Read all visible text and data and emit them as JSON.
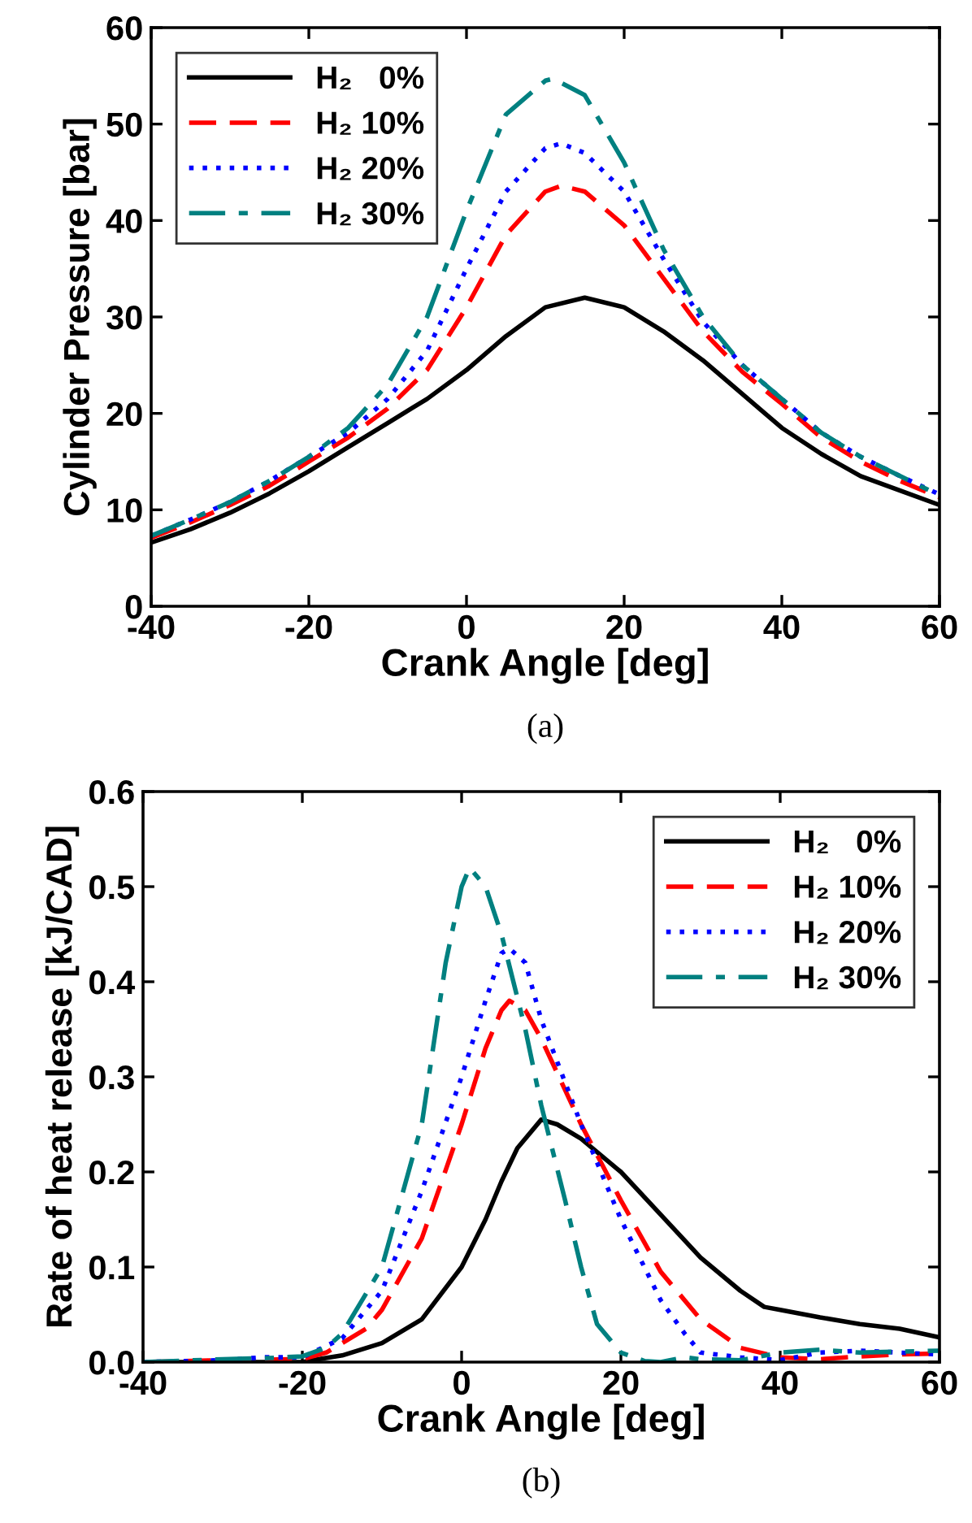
{
  "chart_data": [
    {
      "type": "line",
      "xlabel": "Crank Angle [deg]",
      "ylabel": "Cylinder Pressure [bar]",
      "annotations": [
        "(a)"
      ],
      "xlim": [
        -40,
        60
      ],
      "xticks": [
        -40,
        -20,
        0,
        20,
        40,
        60
      ],
      "ylim": [
        0,
        60
      ],
      "yticks": [
        0,
        10,
        20,
        30,
        40,
        50,
        60
      ],
      "grid": false,
      "legend": "top left",
      "series": [
        {
          "name": "H₂   0%",
          "color": "#000000",
          "line_style": "solid",
          "x": [
            -40,
            -35,
            -30,
            -25,
            -20,
            -15,
            -10,
            -5,
            0,
            5,
            10,
            15,
            20,
            25,
            30,
            35,
            40,
            45,
            50,
            55,
            60
          ],
          "values": [
            6.6,
            8,
            9.7,
            11.7,
            14,
            16.5,
            19,
            21.5,
            24.5,
            28,
            31,
            32,
            31,
            28.5,
            25.5,
            22,
            18.5,
            15.8,
            13.5,
            12,
            10.5
          ]
        },
        {
          "name": "H₂ 10%",
          "color": "#ff0000",
          "line_style": "dashed",
          "x": [
            -40,
            -35,
            -30,
            -25,
            -20,
            -15,
            -10,
            -5,
            0,
            5,
            10,
            12,
            15,
            20,
            25,
            30,
            35,
            40,
            45,
            50,
            55,
            60
          ],
          "values": [
            7.1,
            8.7,
            10.5,
            12.5,
            15,
            17.5,
            20.5,
            24.5,
            31,
            38.5,
            43,
            43.6,
            43,
            39.5,
            34,
            28.5,
            24.3,
            21,
            17.5,
            15,
            13,
            11.3
          ]
        },
        {
          "name": "H₂ 20%",
          "color": "#0000ff",
          "line_style": "dotted",
          "x": [
            -40,
            -35,
            -30,
            -25,
            -20,
            -15,
            -10,
            -5,
            0,
            5,
            10,
            12,
            15,
            20,
            25,
            30,
            35,
            40,
            45,
            50,
            55,
            60
          ],
          "values": [
            7.3,
            9,
            10.8,
            13,
            15.5,
            18,
            21.5,
            26.5,
            35,
            43,
            47.5,
            48,
            47,
            43,
            36,
            29.5,
            25,
            21.5,
            18,
            15.5,
            13.5,
            11.6
          ]
        },
        {
          "name": "H₂ 30%",
          "color": "#008080",
          "line_style": "dashdot",
          "x": [
            -40,
            -35,
            -30,
            -25,
            -20,
            -15,
            -10,
            -5,
            0,
            5,
            10,
            11,
            15,
            20,
            25,
            30,
            35,
            40,
            45,
            50,
            55,
            60
          ],
          "values": [
            7.3,
            9,
            10.8,
            13,
            15.5,
            18.5,
            23,
            30,
            41,
            51,
            54.5,
            54.7,
            53,
            46,
            37,
            30,
            25,
            21.5,
            18,
            15.5,
            13.5,
            11.5
          ]
        }
      ]
    },
    {
      "type": "line",
      "xlabel": "Crank Angle [deg]",
      "ylabel": "Rate of heat release [kJ/CAD]",
      "annotations": [
        "(b)"
      ],
      "xlim": [
        -40,
        60
      ],
      "xticks": [
        -40,
        -20,
        0,
        20,
        40,
        60
      ],
      "ylim": [
        0,
        0.6
      ],
      "yticks": [
        {
          "value": 0,
          "label": "0.0"
        },
        0.1,
        0.2,
        0.3,
        0.4,
        0.5,
        0.6
      ],
      "grid": false,
      "legend": "top right",
      "series": [
        {
          "name": "H₂   0%",
          "color": "#000000",
          "line_style": "solid",
          "x": [
            -40,
            -20,
            -18,
            -15,
            -10,
            -5,
            0,
            3,
            5,
            7,
            10,
            12,
            15,
            20,
            25,
            30,
            35,
            38,
            40,
            45,
            50,
            55,
            60
          ],
          "values": [
            0,
            0,
            0.003,
            0.007,
            0.02,
            0.045,
            0.1,
            0.15,
            0.19,
            0.225,
            0.255,
            0.25,
            0.235,
            0.2,
            0.155,
            0.11,
            0.075,
            0.058,
            0.055,
            0.047,
            0.04,
            0.035,
            0.026
          ]
        },
        {
          "name": "H₂ 10%",
          "color": "#ff0000",
          "line_style": "dashed",
          "x": [
            -40,
            -30,
            -20,
            -17,
            -15,
            -12,
            -10,
            -5,
            0,
            3,
            5,
            6,
            8,
            10,
            15,
            20,
            25,
            30,
            35,
            40,
            45,
            50,
            55,
            60
          ],
          "values": [
            0,
            0.002,
            0.003,
            0.01,
            0.02,
            0.035,
            0.055,
            0.13,
            0.25,
            0.33,
            0.37,
            0.38,
            0.37,
            0.34,
            0.25,
            0.17,
            0.095,
            0.045,
            0.015,
            0.005,
            0.003,
            0.006,
            0.008,
            0.009
          ]
        },
        {
          "name": "H₂ 20%",
          "color": "#0000ff",
          "line_style": "dotted",
          "x": [
            -40,
            -30,
            -25,
            -20,
            -15,
            -10,
            -5,
            0,
            3,
            5,
            6,
            8,
            10,
            15,
            20,
            25,
            28,
            30,
            35,
            40,
            45,
            50,
            55,
            60
          ],
          "values": [
            0,
            0.002,
            0.005,
            0.005,
            0.025,
            0.075,
            0.18,
            0.3,
            0.38,
            0.43,
            0.435,
            0.42,
            0.36,
            0.25,
            0.15,
            0.065,
            0.03,
            0.01,
            0.005,
            0.002,
            0.01,
            0.012,
            0.01,
            0.008
          ]
        },
        {
          "name": "H₂ 30%",
          "color": "#008080",
          "line_style": "dashdot",
          "x": [
            -40,
            -30,
            -25,
            -20,
            -17,
            -15,
            -10,
            -5,
            -2,
            0,
            1,
            3,
            5,
            8,
            10,
            13,
            15,
            17,
            20,
            23,
            25,
            28,
            30,
            35,
            40,
            45,
            50,
            55,
            60
          ],
          "values": [
            0,
            0.003,
            0.004,
            0.006,
            0.015,
            0.03,
            0.1,
            0.25,
            0.42,
            0.5,
            0.52,
            0.5,
            0.45,
            0.35,
            0.27,
            0.17,
            0.1,
            0.04,
            0.01,
            0.001,
            0,
            0.005,
            0.003,
            0.002,
            0.01,
            0.013,
            0.01,
            0.011,
            0.012
          ]
        }
      ]
    }
  ]
}
